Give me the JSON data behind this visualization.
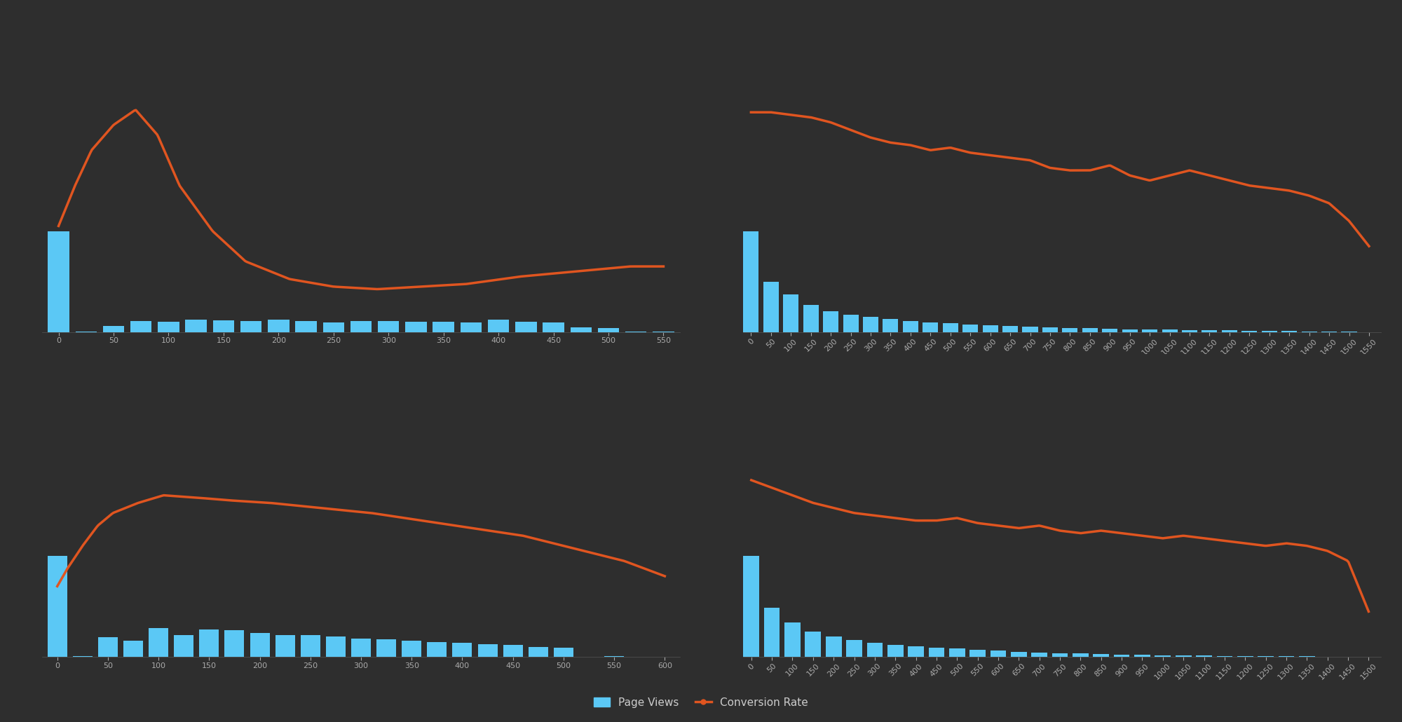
{
  "bg_color": "#2e2e2e",
  "bar_color": "#5bc8f5",
  "line_color": "#e05520",
  "subplot1": {
    "x_bins": [
      0,
      25,
      50,
      75,
      100,
      125,
      150,
      175,
      200,
      225,
      250,
      275,
      300,
      325,
      350,
      375,
      400,
      425,
      450,
      475,
      500,
      525,
      550
    ],
    "bar_heights": [
      1000,
      8,
      60,
      110,
      100,
      120,
      115,
      108,
      120,
      112,
      98,
      110,
      108,
      102,
      104,
      98,
      125,
      102,
      95,
      50,
      42,
      8,
      3
    ],
    "xlim": [
      -15,
      565
    ],
    "xticks": [
      0,
      50,
      100,
      150,
      200,
      250,
      300,
      350,
      400,
      450,
      500,
      550
    ],
    "conv_x": [
      0,
      15,
      30,
      50,
      70,
      90,
      110,
      140,
      170,
      210,
      250,
      290,
      330,
      370,
      420,
      470,
      520,
      550
    ],
    "conv_y": [
      0.42,
      0.58,
      0.72,
      0.82,
      0.88,
      0.78,
      0.58,
      0.4,
      0.28,
      0.21,
      0.18,
      0.17,
      0.18,
      0.19,
      0.22,
      0.24,
      0.26,
      0.26
    ],
    "bar_ylim": [
      0,
      3000
    ],
    "line_ylim": [
      0.0,
      1.2
    ],
    "bin_width": 22
  },
  "subplot2": {
    "x_bins": [
      0,
      50,
      100,
      150,
      200,
      250,
      300,
      350,
      400,
      450,
      500,
      550,
      600,
      650,
      700,
      750,
      800,
      850,
      900,
      950,
      1000,
      1050,
      1100,
      1150,
      1200,
      1250,
      1300,
      1350,
      1400,
      1450,
      1500,
      1550
    ],
    "bar_heights": [
      1000,
      500,
      370,
      270,
      205,
      175,
      148,
      128,
      112,
      98,
      88,
      78,
      67,
      60,
      52,
      46,
      42,
      37,
      32,
      29,
      26,
      23,
      21,
      19,
      17,
      14,
      12,
      10,
      8,
      6,
      4,
      2
    ],
    "xlim": [
      -20,
      1580
    ],
    "xticks": [
      0,
      50,
      100,
      150,
      200,
      250,
      300,
      350,
      400,
      450,
      500,
      550,
      600,
      650,
      700,
      750,
      800,
      850,
      900,
      950,
      1000,
      1050,
      1100,
      1150,
      1200,
      1250,
      1300,
      1350,
      1400,
      1450,
      1500,
      1550
    ],
    "conv_x": [
      0,
      50,
      100,
      150,
      200,
      250,
      300,
      350,
      400,
      450,
      500,
      550,
      600,
      650,
      700,
      750,
      800,
      850,
      900,
      950,
      1000,
      1050,
      1100,
      1150,
      1200,
      1250,
      1300,
      1350,
      1400,
      1450,
      1500,
      1550
    ],
    "conv_y": [
      0.87,
      0.87,
      0.86,
      0.85,
      0.83,
      0.8,
      0.77,
      0.75,
      0.74,
      0.72,
      0.73,
      0.71,
      0.7,
      0.69,
      0.68,
      0.65,
      0.64,
      0.64,
      0.66,
      0.62,
      0.6,
      0.62,
      0.64,
      0.62,
      0.6,
      0.58,
      0.57,
      0.56,
      0.54,
      0.51,
      0.44,
      0.34
    ],
    "bar_ylim": [
      0,
      3000
    ],
    "line_ylim": [
      0.0,
      1.2
    ],
    "bin_width": 44
  },
  "subplot3": {
    "x_bins": [
      0,
      25,
      50,
      75,
      100,
      125,
      150,
      175,
      200,
      225,
      250,
      275,
      300,
      325,
      350,
      375,
      400,
      425,
      450,
      475,
      500,
      550,
      600
    ],
    "bar_heights": [
      1000,
      8,
      195,
      165,
      285,
      215,
      275,
      265,
      235,
      215,
      220,
      205,
      182,
      172,
      162,
      148,
      142,
      128,
      118,
      102,
      92,
      8,
      3
    ],
    "xlim": [
      -15,
      615
    ],
    "xticks": [
      0,
      50,
      100,
      150,
      200,
      250,
      300,
      350,
      400,
      450,
      500,
      550,
      600
    ],
    "conv_x": [
      0,
      10,
      25,
      40,
      55,
      80,
      105,
      140,
      170,
      210,
      260,
      310,
      360,
      410,
      460,
      510,
      560,
      600
    ],
    "conv_y": [
      0.28,
      0.35,
      0.44,
      0.52,
      0.57,
      0.61,
      0.64,
      0.63,
      0.62,
      0.61,
      0.59,
      0.57,
      0.54,
      0.51,
      0.48,
      0.43,
      0.38,
      0.32
    ],
    "bar_ylim": [
      0,
      3000
    ],
    "line_ylim": [
      0.0,
      1.2
    ],
    "bin_width": 22
  },
  "subplot4": {
    "x_bins": [
      0,
      50,
      100,
      150,
      200,
      250,
      300,
      350,
      400,
      450,
      500,
      550,
      600,
      650,
      700,
      750,
      800,
      850,
      900,
      950,
      1000,
      1050,
      1100,
      1150,
      1200,
      1250,
      1300,
      1350,
      1400,
      1450,
      1500
    ],
    "bar_heights": [
      1000,
      490,
      345,
      255,
      200,
      168,
      142,
      122,
      107,
      92,
      82,
      72,
      62,
      54,
      46,
      40,
      34,
      29,
      25,
      22,
      19,
      17,
      14,
      12,
      10,
      8,
      7,
      6,
      5,
      4,
      3
    ],
    "xlim": [
      -20,
      1530
    ],
    "xticks": [
      0,
      50,
      100,
      150,
      200,
      250,
      300,
      350,
      400,
      450,
      500,
      550,
      600,
      650,
      700,
      750,
      800,
      850,
      900,
      950,
      1000,
      1050,
      1100,
      1150,
      1200,
      1250,
      1300,
      1350,
      1400,
      1450,
      1500
    ],
    "conv_x": [
      0,
      50,
      100,
      150,
      200,
      250,
      300,
      350,
      400,
      450,
      500,
      550,
      600,
      650,
      700,
      750,
      800,
      850,
      900,
      950,
      1000,
      1050,
      1100,
      1150,
      1200,
      1250,
      1300,
      1350,
      1400,
      1450,
      1500
    ],
    "conv_y": [
      0.7,
      0.67,
      0.64,
      0.61,
      0.59,
      0.57,
      0.56,
      0.55,
      0.54,
      0.54,
      0.55,
      0.53,
      0.52,
      0.51,
      0.52,
      0.5,
      0.49,
      0.5,
      0.49,
      0.48,
      0.47,
      0.48,
      0.47,
      0.46,
      0.45,
      0.44,
      0.45,
      0.44,
      0.42,
      0.38,
      0.18
    ],
    "bar_ylim": [
      0,
      3000
    ],
    "line_ylim": [
      0.0,
      1.2
    ],
    "bin_width": 44
  },
  "tick_color": "#aaaaaa",
  "tick_fontsize": 8,
  "spine_color": "#555555"
}
